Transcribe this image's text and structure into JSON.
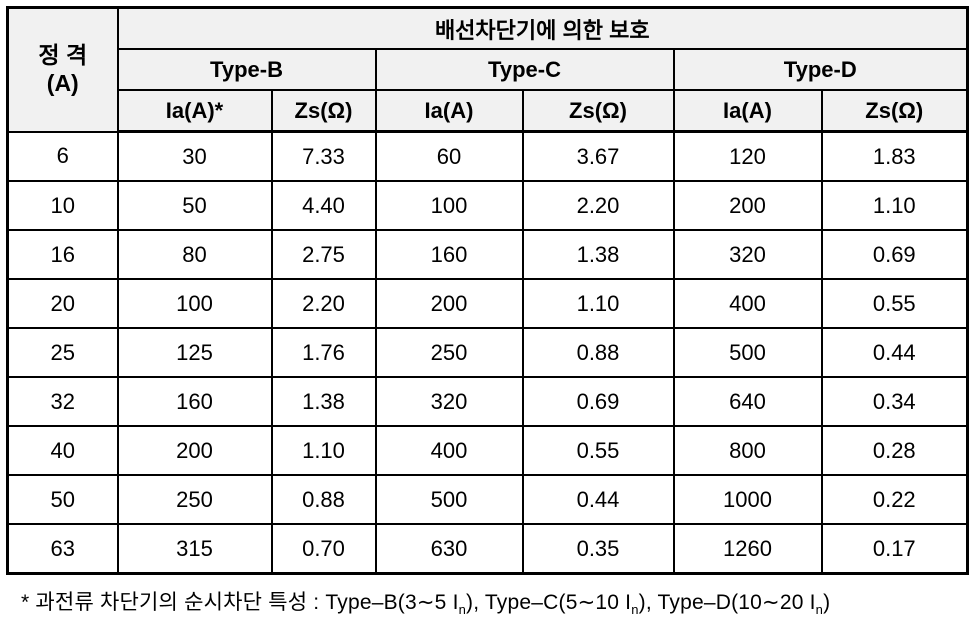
{
  "table": {
    "rating_header": {
      "line1": "정 격",
      "line2": "(A)"
    },
    "group_header": "배선차단기에 의한 보호",
    "type_headers": [
      "Type-B",
      "Type-C",
      "Type-D"
    ],
    "sub_headers": [
      "Ia(A)*",
      "Zs(Ω)",
      "Ia(A)",
      "Zs(Ω)",
      "Ia(A)",
      "Zs(Ω)"
    ],
    "rows": [
      {
        "rating": "6",
        "values": [
          "30",
          "7.33",
          "60",
          "3.67",
          "120",
          "1.83"
        ]
      },
      {
        "rating": "10",
        "values": [
          "50",
          "4.40",
          "100",
          "2.20",
          "200",
          "1.10"
        ]
      },
      {
        "rating": "16",
        "values": [
          "80",
          "2.75",
          "160",
          "1.38",
          "320",
          "0.69"
        ]
      },
      {
        "rating": "20",
        "values": [
          "100",
          "2.20",
          "200",
          "1.10",
          "400",
          "0.55"
        ]
      },
      {
        "rating": "25",
        "values": [
          "125",
          "1.76",
          "250",
          "0.88",
          "500",
          "0.44"
        ]
      },
      {
        "rating": "32",
        "values": [
          "160",
          "1.38",
          "320",
          "0.69",
          "640",
          "0.34"
        ]
      },
      {
        "rating": "40",
        "values": [
          "200",
          "1.10",
          "400",
          "0.55",
          "800",
          "0.28"
        ]
      },
      {
        "rating": "50",
        "values": [
          "250",
          "0.88",
          "500",
          "0.44",
          "1000",
          "0.22"
        ]
      },
      {
        "rating": "63",
        "values": [
          "315",
          "0.70",
          "630",
          "0.35",
          "1260",
          "0.17"
        ]
      }
    ]
  },
  "footnote": {
    "parts": [
      "*  과전류 차단기의 순시차단 특성 : Type–B(3∼5 I",
      "n",
      "), Type–C(5∼10 I",
      "n",
      "), Type–D(10∼20 I",
      "n",
      ")"
    ]
  },
  "colors": {
    "border": "#000000",
    "header_background": "#f1f1f1",
    "cell_background": "#ffffff",
    "text": "#000000"
  }
}
